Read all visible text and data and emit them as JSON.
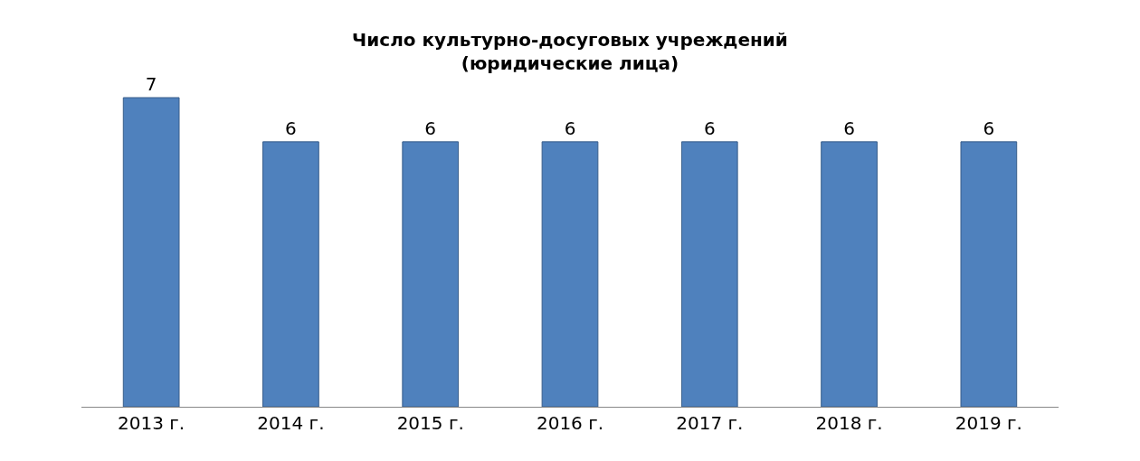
{
  "chart_data": {
    "type": "bar",
    "title": "Число культурно-досуговых учреждений\n(юридические лица)",
    "categories": [
      "2013 г.",
      "2014 г.",
      "2015 г.",
      "2016 г.",
      "2017 г.",
      "2018 г.",
      "2019 г."
    ],
    "values": [
      7,
      6,
      6,
      6,
      6,
      6,
      6
    ],
    "color": "#4f81bd",
    "data_labels": true,
    "tick_labels": "x"
  }
}
